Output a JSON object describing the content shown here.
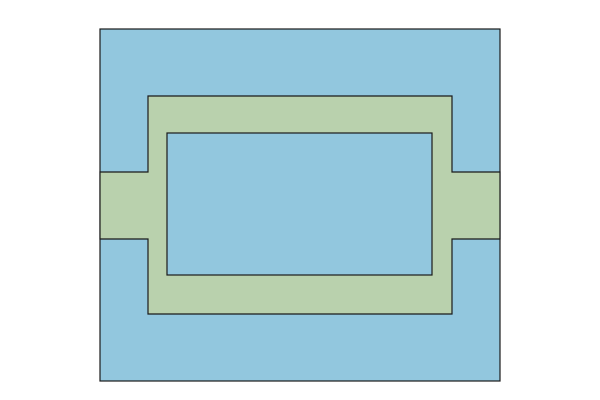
{
  "colors": {
    "background": "#ffffff",
    "outer_region": "#92c7de",
    "band_region": "#b9d1ad",
    "inner_region": "#92c7de",
    "outline": "#1a1a1a"
  },
  "regions": [
    {
      "name": "outer-region",
      "fill_color": "outer_region"
    },
    {
      "name": "band-region",
      "fill_color": "band_region"
    },
    {
      "name": "inner-region",
      "fill_color": "inner_region"
    }
  ]
}
